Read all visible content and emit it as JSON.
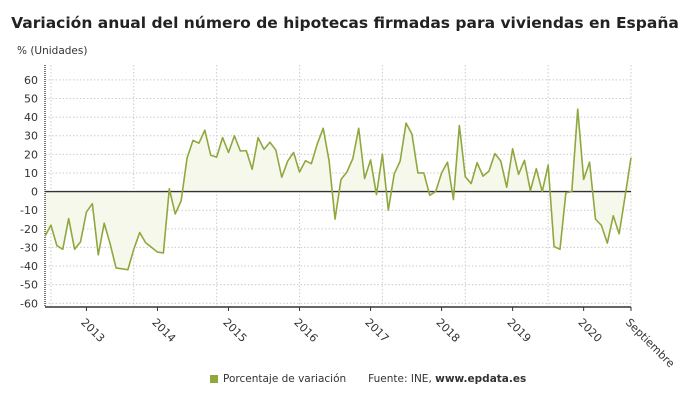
{
  "chart_data": {
    "type": "area",
    "title": "Variación anual del número de hipotecas firmadas para viviendas en España",
    "ylabel": "% (Unidades)",
    "xlabel": "",
    "start_month": "2012-06",
    "end_month": "2020-09",
    "ylim": [
      -62,
      68
    ],
    "yticks": [
      60,
      50,
      40,
      30,
      20,
      10,
      0,
      -10,
      -20,
      -30,
      -40,
      -50,
      -60
    ],
    "xtick_labels": [
      "2013",
      "2014",
      "2015",
      "2016",
      "2017",
      "2018",
      "2019",
      "2020",
      "Septiembre"
    ],
    "grid": true,
    "legend_position": "bottom",
    "series": [
      {
        "name": "Porcentaje de variación",
        "color": "#8fa83e",
        "values": [
          -24,
          -18,
          -29,
          -31,
          -14.5,
          -31,
          -27,
          -11,
          -6.5,
          -34,
          -17,
          -28,
          -41,
          -41.5,
          -42,
          -31,
          -22,
          -27.5,
          -30,
          -32.5,
          -33,
          1.5,
          -12,
          -5,
          18,
          27.5,
          26,
          33,
          19.5,
          18.5,
          29,
          21,
          30,
          21.8,
          22,
          12,
          29,
          22.7,
          26.5,
          22.3,
          7.7,
          16.4,
          21,
          10.5,
          16.6,
          15,
          25.6,
          34,
          16.4,
          -14.8,
          6.5,
          10.5,
          17.7,
          34,
          7,
          17,
          -1.6,
          20,
          -10,
          9.5,
          16.4,
          36.8,
          30.8,
          10,
          10,
          -2,
          0,
          10,
          15.8,
          -4.3,
          35.5,
          8,
          4.3,
          15.5,
          8.3,
          11,
          20.4,
          16.4,
          2.3,
          23,
          9.2,
          16.8,
          0.5,
          12.3,
          0,
          14.2,
          -29.5,
          -31,
          -0.7,
          0,
          44.3,
          6.5,
          15.8,
          -14.8,
          -18.2,
          -27.7,
          -13,
          -22.7,
          -2.5,
          18.2
        ]
      }
    ]
  },
  "legend": {
    "label": "Porcentaje de variación"
  },
  "source": {
    "prefix": "Fuente: INE, ",
    "site": "www.epdata.es"
  }
}
